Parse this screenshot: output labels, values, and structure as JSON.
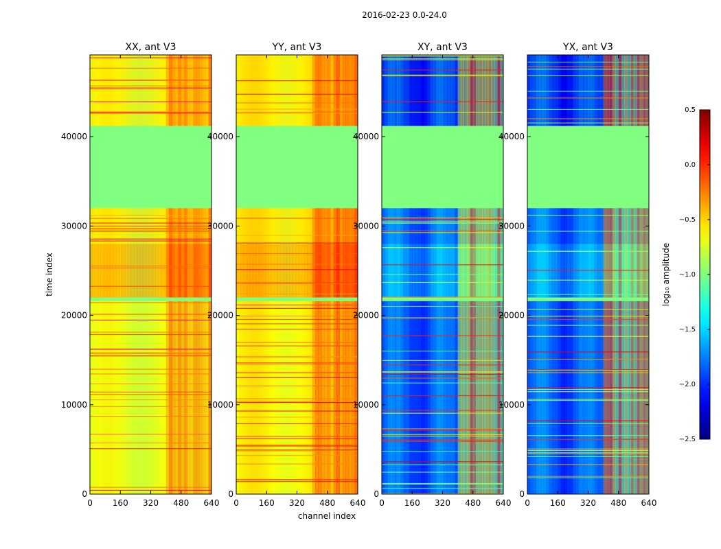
{
  "chart_data": {
    "type": "heatmap",
    "suptitle": "2016-02-23 0.0-24.0",
    "xlabel": "channel index",
    "ylabel": "time index",
    "xlim": [
      0,
      640
    ],
    "ylim": [
      0,
      49152
    ],
    "xticks": [
      0,
      160,
      320,
      480,
      640
    ],
    "yticks": [
      0,
      10000,
      20000,
      30000,
      40000
    ],
    "colorbar": {
      "label": "log₁₀ amplitude",
      "colormap": "jet",
      "range": [
        -2.5,
        0.5
      ],
      "ticks": [
        "0.5",
        "0.0",
        "−0.5",
        "−1.0",
        "−1.5",
        "−2.0",
        "−2.5"
      ],
      "tick_values": [
        0.5,
        0.0,
        -0.5,
        -1.0,
        -1.5,
        -2.0,
        -2.5
      ]
    },
    "flagged_time_ranges": [
      [
        38000,
        41200
      ],
      [
        32000,
        38200
      ],
      [
        21600,
        22000
      ]
    ],
    "bright_channel_range": [
      400,
      640
    ],
    "panels": [
      {
        "title": "XX, ant V3",
        "kind": "auto",
        "baseline": -0.7,
        "time_profile": [
          {
            "t": [
              0,
              20000
            ],
            "value": -0.7
          },
          {
            "t": [
              22000,
              28000
            ],
            "value": -0.2
          },
          {
            "t": [
              28000,
              32000
            ],
            "value": -0.5
          },
          {
            "t": [
              41000,
              49152
            ],
            "value": -0.55
          }
        ]
      },
      {
        "title": "YY, ant V3",
        "kind": "auto",
        "baseline": -0.6,
        "time_profile": [
          {
            "t": [
              0,
              20000
            ],
            "value": -0.65
          },
          {
            "t": [
              22000,
              28000
            ],
            "value": -0.2
          },
          {
            "t": [
              28000,
              32000
            ],
            "value": -0.5
          },
          {
            "t": [
              41000,
              49152
            ],
            "value": -0.55
          }
        ]
      },
      {
        "title": "XY, ant V3",
        "kind": "cross",
        "baseline": -1.9,
        "time_profile": [
          {
            "t": [
              0,
              20000
            ],
            "value": -1.9
          },
          {
            "t": [
              22000,
              28000
            ],
            "value": -1.5
          },
          {
            "t": [
              28000,
              32000
            ],
            "value": -1.8
          },
          {
            "t": [
              41000,
              49152
            ],
            "value": -2.2
          }
        ]
      },
      {
        "title": "YX, ant V3",
        "kind": "cross",
        "baseline": -1.9,
        "time_profile": [
          {
            "t": [
              0,
              20000
            ],
            "value": -1.9
          },
          {
            "t": [
              22000,
              28000
            ],
            "value": -1.5
          },
          {
            "t": [
              28000,
              32000
            ],
            "value": -1.8
          },
          {
            "t": [
              41000,
              49152
            ],
            "value": -2.2
          }
        ]
      }
    ]
  }
}
